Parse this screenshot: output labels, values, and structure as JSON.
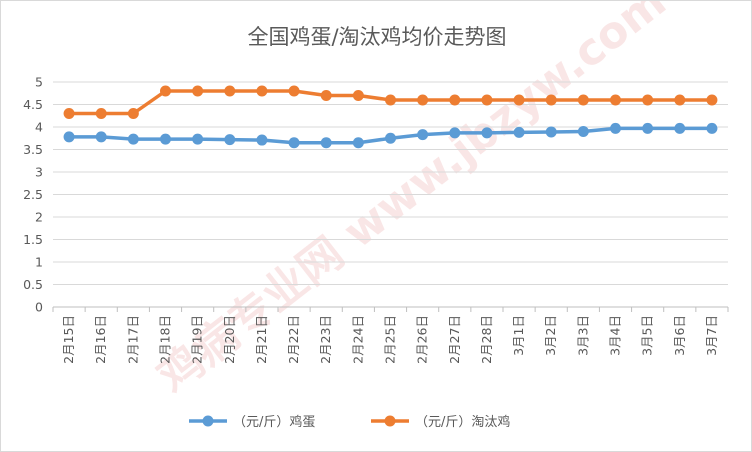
{
  "chart_data": {
    "type": "line",
    "title": "全国鸡蛋/淘汰鸡均价走势图",
    "xlabel": "",
    "ylabel": "",
    "categories": [
      "2月15日",
      "2月16日",
      "2月17日",
      "2月18日",
      "2月19日",
      "2月20日",
      "2月21日",
      "2月22日",
      "2月23日",
      "2月24日",
      "2月25日",
      "2月26日",
      "2月27日",
      "2月28日",
      "3月1日",
      "3月2日",
      "3月3日",
      "3月4日",
      "3月5日",
      "3月6日",
      "3月7日"
    ],
    "ylim": [
      0,
      5
    ],
    "yticks": [
      "0",
      "0.5",
      "1",
      "1.5",
      "2",
      "2.5",
      "3",
      "3.5",
      "4",
      "4.5",
      "5"
    ],
    "grid": true,
    "legend_position": "bottom",
    "series": [
      {
        "name": "（元/斤）鸡蛋",
        "color": "#5b9bd5",
        "values": [
          3.78,
          3.78,
          3.73,
          3.73,
          3.73,
          3.72,
          3.71,
          3.65,
          3.65,
          3.65,
          3.75,
          3.83,
          3.87,
          3.87,
          3.88,
          3.89,
          3.9,
          3.97,
          3.97,
          3.97,
          3.97
        ]
      },
      {
        "name": "（元/斤）淘汰鸡",
        "color": "#ed7d31",
        "values": [
          4.3,
          4.3,
          4.3,
          4.8,
          4.8,
          4.8,
          4.8,
          4.8,
          4.7,
          4.7,
          4.6,
          4.6,
          4.6,
          4.6,
          4.6,
          4.6,
          4.6,
          4.6,
          4.6,
          4.6,
          4.6
        ]
      }
    ],
    "watermark": "鸡病专业网 www.jbzyw.com"
  }
}
